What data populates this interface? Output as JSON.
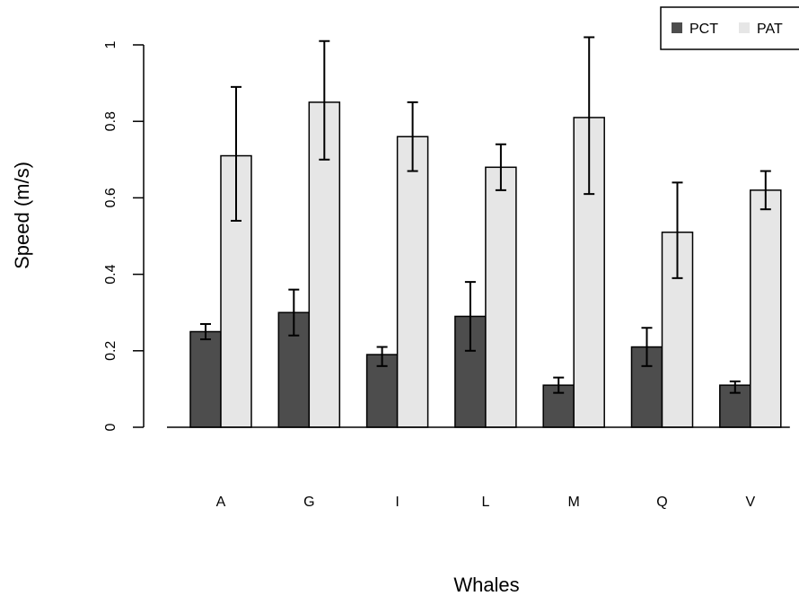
{
  "chart_data": {
    "type": "bar",
    "categories": [
      "A",
      "G",
      "I",
      "L",
      "M",
      "Q",
      "V"
    ],
    "series": [
      {
        "name": "PCT",
        "color": "#4d4d4d",
        "values": [
          0.25,
          0.3,
          0.19,
          0.29,
          0.11,
          0.21,
          0.11
        ],
        "error_low": [
          0.23,
          0.24,
          0.16,
          0.2,
          0.09,
          0.16,
          0.09
        ],
        "error_high": [
          0.27,
          0.36,
          0.21,
          0.38,
          0.13,
          0.26,
          0.12
        ]
      },
      {
        "name": "PAT",
        "color": "#e6e6e6",
        "values": [
          0.71,
          0.85,
          0.76,
          0.68,
          0.81,
          0.51,
          0.62
        ],
        "error_low": [
          0.54,
          0.7,
          0.67,
          0.62,
          0.61,
          0.39,
          0.57
        ],
        "error_high": [
          0.89,
          1.01,
          0.85,
          0.74,
          1.02,
          0.64,
          0.67
        ]
      }
    ],
    "title": "",
    "xlabel": "Whales",
    "ylabel": "Speed (m/s)",
    "ylim": [
      0,
      1
    ],
    "yticks": [
      0,
      0.2,
      0.4,
      0.6,
      0.8,
      1
    ],
    "ytick_labels": [
      "0",
      "0.2",
      "0.4",
      "0.6",
      "0.8",
      "1"
    ],
    "grid": false,
    "legend_position": "top-right"
  }
}
